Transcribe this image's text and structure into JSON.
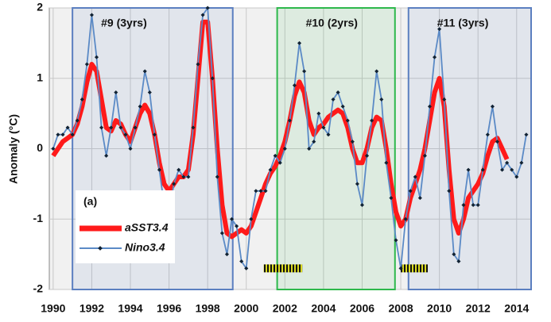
{
  "chart_data": {
    "type": "line",
    "ylabel": "Anomaly (°C)",
    "panel_label": "(a)",
    "xlim": [
      1989.8,
      2014.75
    ],
    "ylim": [
      -2,
      2
    ],
    "xticks": [
      1990,
      1992,
      1994,
      1996,
      1998,
      2000,
      2002,
      2004,
      2006,
      2008,
      2010,
      2012,
      2014
    ],
    "yticks": [
      -2,
      -1,
      0,
      1,
      2
    ],
    "grid": true,
    "legend": "lower left",
    "periods": [
      {
        "label": "#9 (3yrs)",
        "start": 1991.0,
        "end": 1999.3,
        "color": "#5b7fc0"
      },
      {
        "label": "#10 (2yrs)",
        "start": 2001.6,
        "end": 2007.7,
        "color": "#2db84b"
      },
      {
        "label": "#11 (3yrs)",
        "start": 2008.4,
        "end": 2014.75,
        "color": "#5b7fc0"
      }
    ],
    "events": [
      {
        "start": 2000.9,
        "end": 2002.9,
        "y": -1.7
      },
      {
        "start": 2008.0,
        "end": 2009.4,
        "y": -1.7
      }
    ],
    "x": [
      1990.0,
      1990.25,
      1990.5,
      1990.75,
      1991.0,
      1991.25,
      1991.5,
      1991.75,
      1992.0,
      1992.25,
      1992.5,
      1992.75,
      1993.0,
      1993.25,
      1993.5,
      1993.75,
      1994.0,
      1994.25,
      1994.5,
      1994.75,
      1995.0,
      1995.25,
      1995.5,
      1995.75,
      1996.0,
      1996.25,
      1996.5,
      1996.75,
      1997.0,
      1997.25,
      1997.5,
      1997.75,
      1998.0,
      1998.25,
      1998.5,
      1998.75,
      1999.0,
      1999.25,
      1999.5,
      1999.75,
      2000.0,
      2000.25,
      2000.5,
      2000.75,
      2001.0,
      2001.25,
      2001.5,
      2001.75,
      2002.0,
      2002.25,
      2002.5,
      2002.75,
      2003.0,
      2003.25,
      2003.5,
      2003.75,
      2004.0,
      2004.25,
      2004.5,
      2004.75,
      2005.0,
      2005.25,
      2005.5,
      2005.75,
      2006.0,
      2006.25,
      2006.5,
      2006.75,
      2007.0,
      2007.25,
      2007.5,
      2007.75,
      2008.0,
      2008.25,
      2008.5,
      2008.75,
      2009.0,
      2009.25,
      2009.5,
      2009.75,
      2010.0,
      2010.25,
      2010.5,
      2010.75,
      2011.0,
      2011.25,
      2011.5,
      2011.75,
      2012.0,
      2012.25,
      2012.5,
      2012.75,
      2013.0,
      2013.25,
      2013.5,
      2013.75,
      2014.0,
      2014.25,
      2014.5
    ],
    "series": [
      {
        "name": "aSST3.4",
        "color": "#ff1a1a",
        "values": [
          -0.1,
          0.0,
          0.1,
          0.15,
          0.2,
          0.35,
          0.6,
          0.95,
          1.2,
          1.1,
          0.7,
          0.3,
          0.25,
          0.4,
          0.35,
          0.2,
          0.1,
          0.3,
          0.5,
          0.62,
          0.5,
          0.2,
          -0.2,
          -0.5,
          -0.6,
          -0.5,
          -0.4,
          -0.4,
          -0.3,
          0.2,
          1.0,
          1.8,
          1.8,
          1.0,
          0.0,
          -0.8,
          -1.2,
          -1.25,
          -1.2,
          -1.15,
          -1.2,
          -1.1,
          -0.9,
          -0.7,
          -0.5,
          -0.35,
          -0.25,
          -0.1,
          0.1,
          0.4,
          0.75,
          0.95,
          0.8,
          0.4,
          0.2,
          0.3,
          0.35,
          0.45,
          0.5,
          0.55,
          0.5,
          0.3,
          0.0,
          -0.2,
          -0.2,
          0.0,
          0.3,
          0.45,
          0.4,
          0.0,
          -0.5,
          -0.9,
          -1.1,
          -1.0,
          -0.7,
          -0.5,
          -0.3,
          0.0,
          0.4,
          0.8,
          1.0,
          0.6,
          -0.3,
          -1.0,
          -1.2,
          -1.0,
          -0.7,
          -0.6,
          -0.5,
          -0.35,
          -0.1,
          0.1,
          0.15,
          0.0,
          -0.15,
          null,
          null,
          null,
          null
        ]
      },
      {
        "name": "Nino3.4",
        "color": "#5b8ac6",
        "values": [
          0.0,
          0.2,
          0.2,
          0.3,
          0.2,
          0.4,
          0.7,
          1.2,
          1.9,
          1.3,
          0.3,
          -0.1,
          0.3,
          0.8,
          0.3,
          0.2,
          0.0,
          0.3,
          0.6,
          1.1,
          0.8,
          0.2,
          -0.3,
          -0.8,
          -0.9,
          -0.5,
          -0.3,
          -0.4,
          -0.4,
          0.3,
          1.2,
          1.9,
          2.0,
          1.0,
          -0.4,
          -1.2,
          -1.5,
          -1.0,
          -1.1,
          -1.6,
          -1.7,
          -1.0,
          -0.6,
          -0.6,
          -0.6,
          -0.3,
          -0.1,
          -0.2,
          0.0,
          0.4,
          0.9,
          1.5,
          1.1,
          0.0,
          0.1,
          0.5,
          0.3,
          0.2,
          0.7,
          0.8,
          0.6,
          0.4,
          0.1,
          -0.5,
          -0.8,
          -0.1,
          0.4,
          1.1,
          0.7,
          -0.2,
          -0.7,
          -1.3,
          -1.7,
          -1.0,
          -0.6,
          -0.4,
          -0.7,
          -0.1,
          0.6,
          1.3,
          1.7,
          0.7,
          -0.6,
          -1.5,
          -1.6,
          -0.8,
          -0.3,
          -0.8,
          -0.8,
          -0.3,
          0.2,
          0.6,
          0.1,
          -0.3,
          -0.2,
          -0.3,
          -0.4,
          -0.2,
          0.2
        ]
      }
    ]
  }
}
